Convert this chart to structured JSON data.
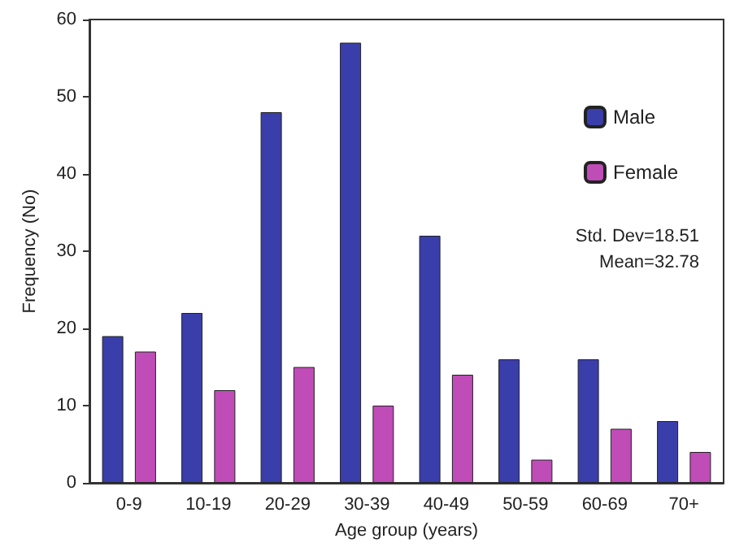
{
  "chart_data": {
    "type": "bar",
    "xlabel": "Age group (years)",
    "ylabel": "Frequency (No)",
    "categories": [
      "0-9",
      "10-19",
      "20-29",
      "30-39",
      "40-49",
      "50-59",
      "60-69",
      "70+"
    ],
    "series": [
      {
        "name": "Male",
        "color": "#3a3eaa",
        "values": [
          19,
          22,
          48,
          57,
          32,
          16,
          16,
          8
        ]
      },
      {
        "name": "Female",
        "color": "#c04cb8",
        "values": [
          17,
          12,
          15,
          10,
          14,
          3,
          7,
          4
        ]
      }
    ],
    "ylim": [
      0,
      60
    ],
    "yticks": [
      0,
      10,
      20,
      30,
      40,
      50,
      60
    ],
    "grid": false,
    "legend": "top right",
    "annotations": [
      "Std. Dev=18.51",
      "Mean=32.78"
    ]
  }
}
